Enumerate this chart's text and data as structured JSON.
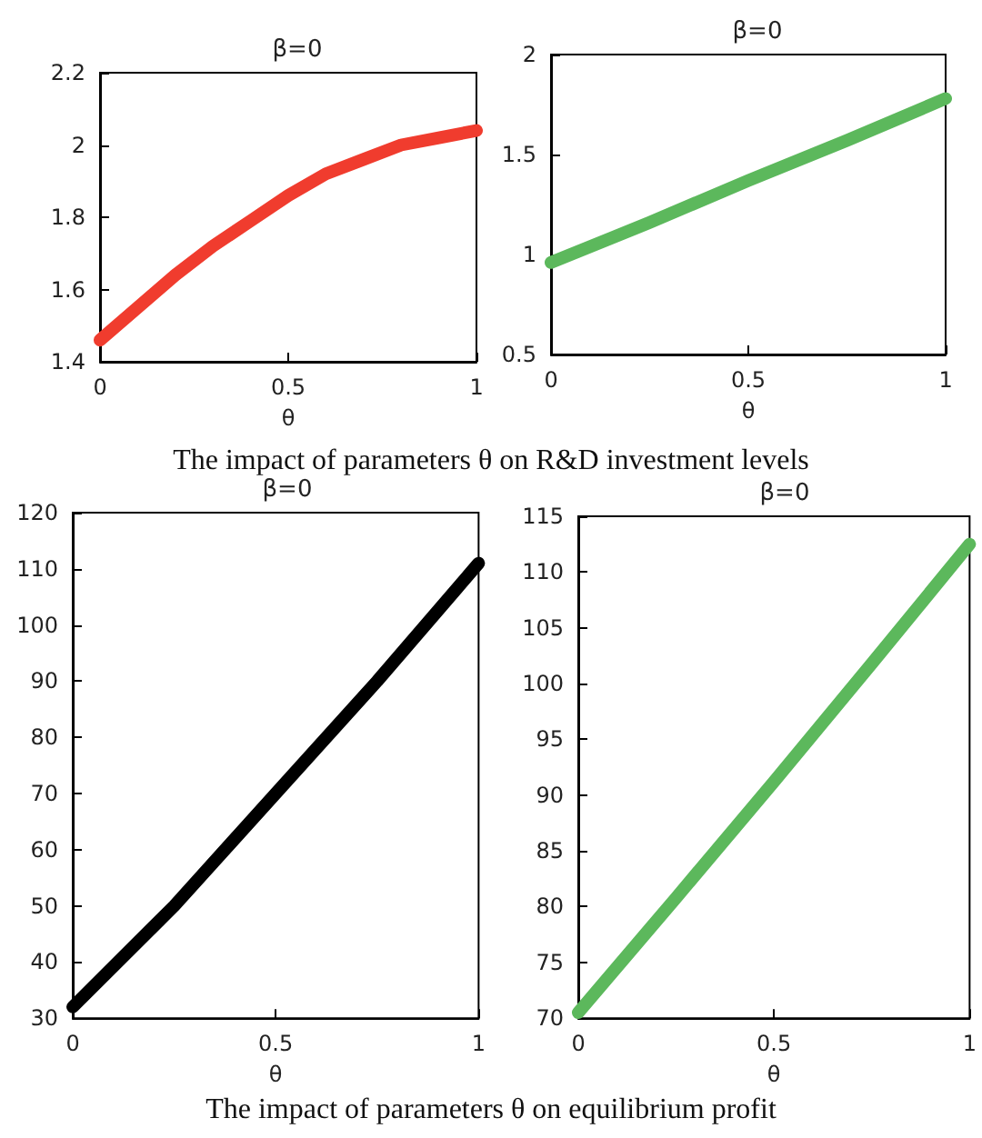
{
  "chart_data": [
    {
      "type": "line",
      "title": "β=0",
      "xlabel": "θ",
      "annotations": [
        "The impact of parameters θ on R&D investment levels"
      ],
      "x": [
        0,
        0.1,
        0.2,
        0.3,
        0.4,
        0.5,
        0.6,
        0.7,
        0.8,
        0.9,
        1
      ],
      "series": [
        {
          "color": "#f03c2e",
          "values": [
            1.46,
            1.55,
            1.64,
            1.72,
            1.79,
            1.86,
            1.92,
            1.96,
            2.0,
            2.02,
            2.04
          ]
        }
      ],
      "xlim": [
        0,
        1
      ],
      "xticks": [
        0,
        0.5,
        1
      ],
      "ylim": [
        1.4,
        2.2
      ],
      "yticks": [
        1.4,
        1.6,
        1.8,
        2,
        2.2
      ],
      "grid": false,
      "line_style": "solid"
    },
    {
      "type": "line",
      "title": "β=0",
      "xlabel": "θ",
      "x": [
        0,
        0.25,
        0.5,
        0.75,
        1
      ],
      "series": [
        {
          "color": "#5cb85c",
          "values": [
            0.96,
            1.16,
            1.37,
            1.57,
            1.78
          ]
        }
      ],
      "xlim": [
        0,
        1
      ],
      "xticks": [
        0,
        0.5,
        1
      ],
      "ylim": [
        0.5,
        2
      ],
      "yticks": [
        0.5,
        1,
        1.5,
        2
      ],
      "grid": false,
      "line_style": "solid"
    },
    {
      "type": "line",
      "title": "β=0",
      "xlabel": "θ",
      "annotations": [
        "The impact of parameters θ on equilibrium profit"
      ],
      "x": [
        0,
        0.25,
        0.5,
        0.75,
        1
      ],
      "series": [
        {
          "color": "#000000",
          "values": [
            32,
            50,
            70,
            90,
            111
          ]
        }
      ],
      "xlim": [
        0,
        1
      ],
      "xticks": [
        0,
        0.5,
        1
      ],
      "ylim": [
        30,
        120
      ],
      "yticks": [
        30,
        40,
        50,
        60,
        70,
        80,
        90,
        100,
        110,
        120
      ],
      "grid": false,
      "line_style": "solid"
    },
    {
      "type": "line",
      "title": "β=0",
      "xlabel": "θ",
      "x": [
        0,
        0.25,
        0.5,
        0.75,
        1
      ],
      "series": [
        {
          "color": "#5cb85c",
          "values": [
            70.5,
            80.8,
            91.2,
            101.8,
            112.5
          ]
        }
      ],
      "xlim": [
        0,
        1
      ],
      "xticks": [
        0,
        0.5,
        1
      ],
      "ylim": [
        70,
        115
      ],
      "yticks": [
        70,
        75,
        80,
        85,
        90,
        95,
        100,
        105,
        110,
        115
      ],
      "grid": false,
      "line_style": "solid"
    }
  ]
}
